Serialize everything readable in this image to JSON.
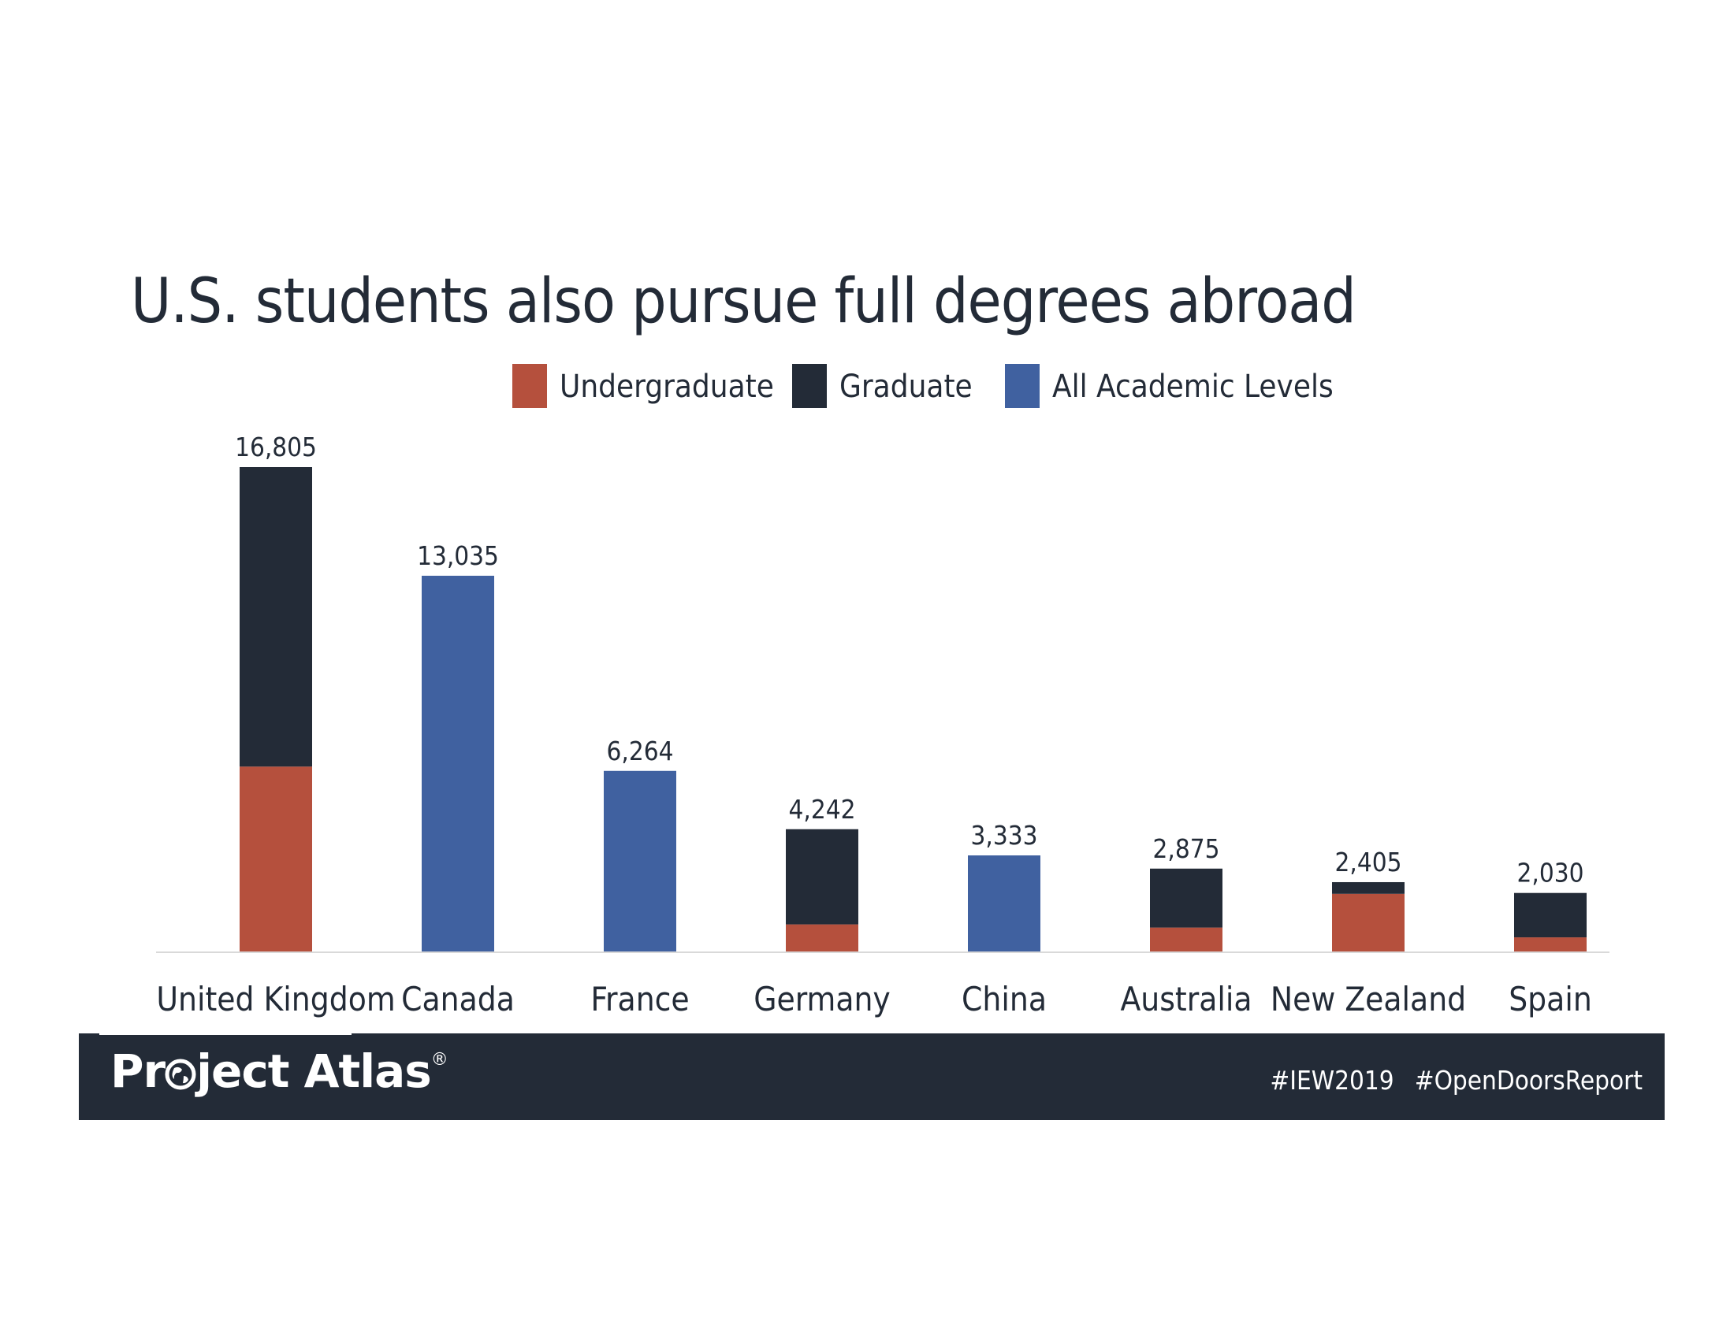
{
  "chart_data": {
    "type": "bar",
    "stacked": true,
    "title": "U.S. students also pursue full degrees abroad",
    "categories": [
      "United Kingdom",
      "Canada",
      "France",
      "Germany",
      "China",
      "Australia",
      "New Zealand",
      "Spain"
    ],
    "totals_labels": [
      "16,805",
      "13,035",
      "6,264",
      "4,242",
      "3,333",
      "2,875",
      "2,405",
      "2,030"
    ],
    "series": [
      {
        "name": "Undergraduate",
        "color": "#b5503d",
        "values": [
          6414,
          0,
          0,
          940,
          0,
          830,
          2000,
          490
        ]
      },
      {
        "name": "Graduate",
        "color": "#232b37",
        "values": [
          10391,
          0,
          0,
          3302,
          0,
          2045,
          405,
          1540
        ]
      },
      {
        "name": "All Academic Levels",
        "color": "#4061a0",
        "values": [
          0,
          13035,
          6264,
          0,
          3333,
          0,
          0,
          0
        ]
      }
    ],
    "ylim": [
      0,
      17500
    ],
    "grid": false,
    "legend": "top"
  },
  "footer": {
    "logo_text_pre": "Pr",
    "logo_text_post": "ject Atlas",
    "logo_mark": "®",
    "hashtags": [
      "#IEW2019",
      "#OpenDoorsReport"
    ]
  },
  "icons": {
    "logo_o": "globe-icon"
  }
}
